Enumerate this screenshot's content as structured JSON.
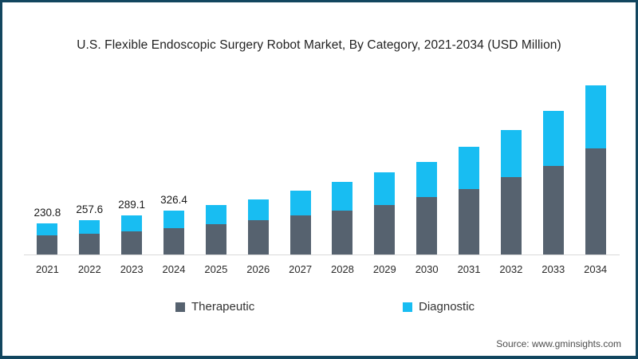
{
  "title": "U.S. Flexible Endoscopic Surgery Robot Market, By Category, 2021-2034 (USD Million)",
  "source": "Source: www.gminsights.com",
  "colors": {
    "frame_border": "#12465f",
    "therapeutic": "#56626f",
    "diagnostic": "#18bdf2",
    "axis_line": "#d9d9d9"
  },
  "legend": {
    "items": [
      {
        "label": "Therapeutic",
        "color": "#56626f"
      },
      {
        "label": "Diagnostic",
        "color": "#18bdf2"
      }
    ]
  },
  "chart_data": {
    "type": "bar",
    "stacked": true,
    "title": "U.S. Flexible Endoscopic Surgery Robot Market, By Category, 2021-2034 (USD Million)",
    "xlabel": "",
    "ylabel": "USD Million",
    "ylim": [
      0,
      1320
    ],
    "grid": false,
    "legend_position": "bottom",
    "categories": [
      "2021",
      "2022",
      "2023",
      "2024",
      "2025",
      "2026",
      "2027",
      "2028",
      "2029",
      "2030",
      "2031",
      "2032",
      "2033",
      "2034"
    ],
    "series": [
      {
        "name": "Therapeutic",
        "color": "#56626f",
        "values": [
          141.0,
          158.0,
          175.0,
          198.0,
          228,
          254,
          289,
          326,
          372,
          428,
          490,
          578,
          663,
          790
        ]
      },
      {
        "name": "Diagnostic",
        "color": "#18bdf2",
        "values": [
          89.8,
          99.6,
          114.1,
          128.4,
          142,
          158,
          186,
          214,
          240,
          264,
          315,
          352,
          407,
          472
        ]
      }
    ],
    "totals": [
      230.8,
      257.6,
      289.1,
      326.4,
      370,
      412,
      475,
      540,
      612,
      692,
      805,
      930,
      1070,
      1262
    ],
    "total_labels": [
      "230.8",
      "257.6",
      "289.1",
      "326.4",
      "",
      "",
      "",
      "",
      "",
      "",
      "",
      "",
      "",
      ""
    ]
  }
}
